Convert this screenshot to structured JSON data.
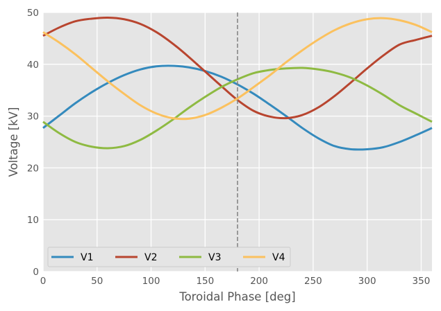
{
  "chart_data": {
    "type": "line",
    "title": "",
    "xlabel": "Toroidal Phase [deg]",
    "ylabel": "Voltage [kV]",
    "xlim": [
      0,
      360
    ],
    "ylim": [
      0,
      50
    ],
    "xticks": [
      0,
      50,
      100,
      150,
      200,
      250,
      300,
      350
    ],
    "yticks": [
      0,
      10,
      20,
      30,
      40,
      50
    ],
    "grid": true,
    "legend_position": "lower-left",
    "vline": {
      "x": 180,
      "color": "#808080",
      "style": "dashed"
    },
    "x": [
      0,
      15,
      30,
      45,
      60,
      75,
      90,
      105,
      120,
      135,
      150,
      165,
      180,
      195,
      210,
      225,
      240,
      255,
      270,
      285,
      300,
      315,
      330,
      345,
      360
    ],
    "series": [
      {
        "name": "V1",
        "color": "#348abd",
        "values": [
          27.7,
          30.1,
          32.5,
          34.6,
          36.4,
          37.9,
          39.0,
          39.6,
          39.7,
          39.4,
          38.7,
          37.6,
          36.1,
          34.3,
          32.2,
          30.0,
          27.7,
          25.7,
          24.2,
          23.6,
          23.6,
          24.0,
          25.0,
          26.3,
          27.7
        ]
      },
      {
        "name": "V2",
        "color": "#b8452f",
        "values": [
          45.5,
          47.1,
          48.3,
          48.8,
          49.0,
          48.7,
          47.8,
          46.2,
          44.0,
          41.4,
          38.6,
          35.8,
          33.1,
          31.0,
          29.9,
          29.6,
          30.2,
          31.7,
          33.9,
          36.5,
          39.2,
          41.7,
          43.8,
          44.7,
          45.5
        ]
      },
      {
        "name": "V3",
        "color": "#8eba42",
        "values": [
          28.9,
          26.7,
          25.0,
          24.1,
          23.8,
          24.2,
          25.4,
          27.2,
          29.3,
          31.6,
          33.7,
          35.6,
          37.1,
          38.3,
          38.9,
          39.2,
          39.3,
          39.0,
          38.4,
          37.4,
          35.9,
          34.1,
          32.1,
          30.5,
          28.9
        ]
      },
      {
        "name": "V4",
        "color": "#fbc15e",
        "values": [
          46.2,
          44.2,
          41.9,
          39.3,
          36.7,
          34.3,
          32.1,
          30.5,
          29.6,
          29.5,
          30.2,
          31.6,
          33.4,
          35.6,
          37.9,
          40.4,
          42.7,
          44.8,
          46.6,
          47.9,
          48.7,
          48.9,
          48.5,
          47.6,
          46.2
        ]
      }
    ]
  }
}
